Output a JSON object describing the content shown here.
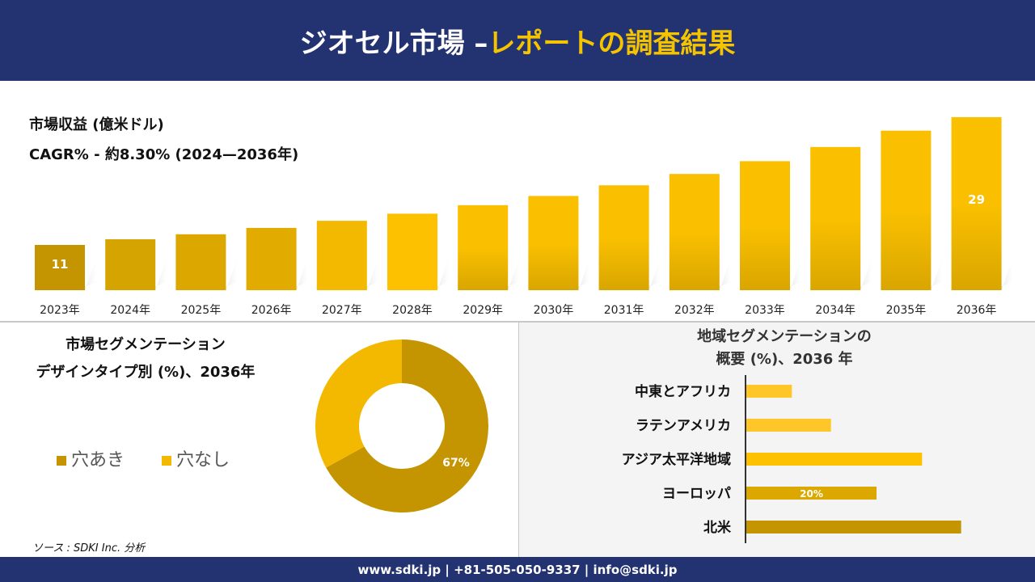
{
  "header": {
    "title_white": "ジオセル市場 –",
    "title_yellow": "レポートの調査結果"
  },
  "revenue": {
    "title": "市場収益 (億米ドル)",
    "cagr": "CAGR% - 約8.30% (2024—2036年)"
  },
  "segment": {
    "title_line1": "市場セグメンテーション",
    "title_line2": "デザインタイプ別 (%)、2036年"
  },
  "region": {
    "title_line1": "地域セグメンテーションの",
    "title_line2": "概要 (%)、2036 年"
  },
  "source": "ソース : SDKI Inc. 分析",
  "footer": "www.sdki.jp | +81-505-050-9337 | info@sdki.jp",
  "chart_data": [
    {
      "type": "bar",
      "title": "市場収益 (億米ドル)",
      "categories": [
        "2023年",
        "2024年",
        "2025年",
        "2026年",
        "2027年",
        "2028年",
        "2029年",
        "2030年",
        "2031年",
        "2032年",
        "2033年",
        "2034年",
        "2035年",
        "2036年"
      ],
      "values": [
        11,
        11.8,
        12.5,
        13.4,
        14.4,
        15.4,
        16.6,
        17.9,
        19.4,
        21,
        22.8,
        24.8,
        27.1,
        29
      ],
      "data_labels": {
        "0": "11",
        "13": "29"
      },
      "colors": [
        "#c49500",
        "#d6a400",
        "#dca800",
        "#e2ab00",
        "#f2b900",
        "#fdc100",
        "#f7bd00",
        "#f4ba00",
        "#f1b700",
        "#f2b800",
        "#f4ba00",
        "#f7bd00",
        "#fac000",
        "#f7bc00"
      ]
    },
    {
      "type": "pie",
      "donut": true,
      "categories": [
        "穴あき",
        "穴なし"
      ],
      "values": [
        67,
        33
      ],
      "data_labels": [
        "67%",
        ""
      ],
      "colors": [
        "#c49500",
        "#f2b900"
      ]
    },
    {
      "type": "bar",
      "orientation": "horizontal",
      "categories": [
        "中東とアフリカ",
        "ラテンアメリカ",
        "アジア太平洋地域",
        "ヨーロッパ",
        "北米"
      ],
      "values": [
        7,
        13,
        27,
        20,
        33
      ],
      "data_labels": [
        "",
        "",
        "",
        "20%",
        ""
      ],
      "colors": [
        "#ffc629",
        "#ffc629",
        "#fdc100",
        "#dca800",
        "#c49500"
      ]
    }
  ]
}
